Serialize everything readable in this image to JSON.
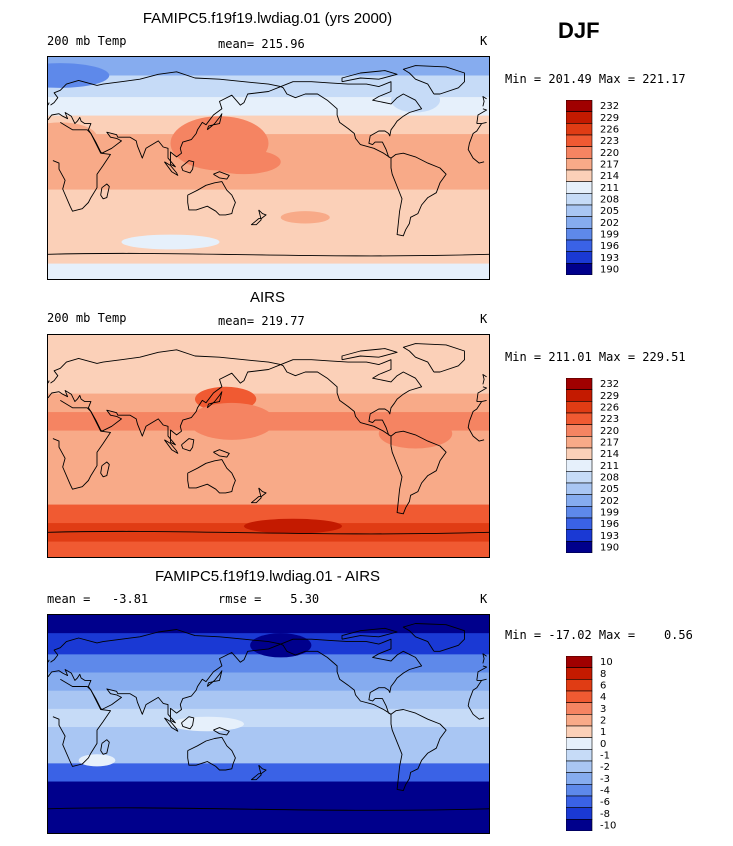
{
  "season": "DJF",
  "coast_color": "#000000",
  "panels": [
    {
      "id": "model",
      "title": "FAMIPC5.f19f19.lwdiag.01 (yrs 2000)",
      "left_label": "200 mb Temp",
      "mid_label": "mean= 215.96",
      "units": "K",
      "minmax": "Min = 201.49 Max = 221.17"
    },
    {
      "id": "obs",
      "title": "AIRS",
      "left_label": "200 mb Temp",
      "mid_label": "mean= 219.77",
      "units": "K",
      "minmax": "Min = 211.01 Max = 229.51"
    },
    {
      "id": "diff",
      "title": "FAMIPC5.f19f19.lwdiag.01 - AIRS",
      "left_label": "mean =   -3.81",
      "mid_label": "rmse =    5.30",
      "units": "K",
      "minmax": "Min = -17.02 Max =    0.56"
    }
  ],
  "chart_data": [
    {
      "type": "heatmap",
      "title": "FAMIPC5.f19f19.lwdiag.01 (yrs 2000)",
      "variable": "200 mb Temp",
      "units": "K",
      "mean": 215.96,
      "min": 201.49,
      "max": 221.17,
      "levels": [
        "232",
        "229",
        "226",
        "223",
        "220",
        "217",
        "214",
        "211",
        "208",
        "205",
        "202",
        "199",
        "196",
        "193",
        "190"
      ],
      "colors": [
        "#a00000",
        "#c41a00",
        "#e03c14",
        "#f05a32",
        "#f58462",
        "#f8aa88",
        "#fbd0b8",
        "#e6f0fb",
        "#c6dbf7",
        "#a9c6f3",
        "#86acef",
        "#5e89ea",
        "#3a62e6",
        "#1a39d4",
        "#00008c"
      ],
      "zonal_bands": [
        {
          "lat": 85,
          "value": 204.5
        },
        {
          "lat": 65,
          "value": 208.5
        },
        {
          "lat": 50,
          "value": 213
        },
        {
          "lat": 35,
          "value": 216
        },
        {
          "lat": 20,
          "value": 218.5
        },
        {
          "lat": 5,
          "value": 219.5
        },
        {
          "lat": -10,
          "value": 219
        },
        {
          "lat": -25,
          "value": 216.5
        },
        {
          "lat": -40,
          "value": 214
        },
        {
          "lat": -55,
          "value": 215.5
        },
        {
          "lat": -70,
          "value": 215
        },
        {
          "lat": -85,
          "value": 212
        }
      ],
      "features": [
        {
          "lon": 140,
          "lat": 20,
          "lon_r": 40,
          "lat_r": 22,
          "value": 220.5
        },
        {
          "lon": 160,
          "lat": 5,
          "lon_r": 30,
          "lat_r": 10,
          "value": 221
        },
        {
          "lon": 10,
          "lat": 25,
          "lon_r": 30,
          "lat_r": 12,
          "value": 217
        },
        {
          "lon": 330,
          "lat": 15,
          "lon_r": 25,
          "lat_r": 12,
          "value": 219
        },
        {
          "lon": 10,
          "lat": 75,
          "lon_r": 40,
          "lat_r": 10,
          "value": 201.5
        },
        {
          "lon": 210,
          "lat": -40,
          "lon_r": 20,
          "lat_r": 5,
          "value": 217
        },
        {
          "lon": 300,
          "lat": 55,
          "lon_r": 20,
          "lat_r": 10,
          "value": 209
        },
        {
          "lon": 100,
          "lat": -60,
          "lon_r": 40,
          "lat_r": 6,
          "value": 213
        }
      ]
    },
    {
      "type": "heatmap",
      "title": "AIRS",
      "variable": "200 mb Temp",
      "units": "K",
      "mean": 219.77,
      "min": 211.01,
      "max": 229.51,
      "levels": [
        "232",
        "229",
        "226",
        "223",
        "220",
        "217",
        "214",
        "211",
        "208",
        "205",
        "202",
        "199",
        "196",
        "193",
        "190"
      ],
      "colors": [
        "#a00000",
        "#c41a00",
        "#e03c14",
        "#f05a32",
        "#f58462",
        "#f8aa88",
        "#fbd0b8",
        "#e6f0fb",
        "#c6dbf7",
        "#a9c6f3",
        "#86acef",
        "#5e89ea",
        "#3a62e6",
        "#1a39d4",
        "#00008c"
      ],
      "zonal_bands": [
        {
          "lat": 85,
          "value": 215
        },
        {
          "lat": 65,
          "value": 214.5
        },
        {
          "lat": 50,
          "value": 216
        },
        {
          "lat": 35,
          "value": 219
        },
        {
          "lat": 20,
          "value": 220
        },
        {
          "lat": 5,
          "value": 219
        },
        {
          "lat": -10,
          "value": 219
        },
        {
          "lat": -25,
          "value": 218
        },
        {
          "lat": -40,
          "value": 219
        },
        {
          "lat": -55,
          "value": 225
        },
        {
          "lat": -70,
          "value": 227
        },
        {
          "lat": -85,
          "value": 224
        }
      ],
      "features": [
        {
          "lon": 145,
          "lat": 38,
          "lon_r": 25,
          "lat_r": 10,
          "value": 223.5
        },
        {
          "lon": 150,
          "lat": 20,
          "lon_r": 35,
          "lat_r": 15,
          "value": 220.5
        },
        {
          "lon": 300,
          "lat": 10,
          "lon_r": 30,
          "lat_r": 12,
          "value": 221
        },
        {
          "lon": 200,
          "lat": -65,
          "lon_r": 40,
          "lat_r": 6,
          "value": 229
        }
      ]
    },
    {
      "type": "heatmap",
      "title": "FAMIPC5.f19f19.lwdiag.01 - AIRS",
      "variable": "difference",
      "units": "K",
      "mean": -3.81,
      "rmse": 5.3,
      "min": -17.02,
      "max": 0.56,
      "levels": [
        "10",
        "8",
        "6",
        "4",
        "3",
        "2",
        "1",
        "0",
        "-1",
        "-2",
        "-3",
        "-4",
        "-6",
        "-8",
        "-10"
      ],
      "colors": [
        "#a00000",
        "#c41a00",
        "#e03c14",
        "#f05a32",
        "#f58462",
        "#f8aa88",
        "#fbd0b8",
        "#e6f0fb",
        "#c6dbf7",
        "#a9c6f3",
        "#86acef",
        "#5e89ea",
        "#3a62e6",
        "#1a39d4",
        "#00008c"
      ],
      "zonal_bands": [
        {
          "lat": 85,
          "value": -10.5
        },
        {
          "lat": 65,
          "value": -6.5
        },
        {
          "lat": 50,
          "value": -3.5
        },
        {
          "lat": 35,
          "value": -2.5
        },
        {
          "lat": 20,
          "value": -1.5
        },
        {
          "lat": 5,
          "value": -0.5
        },
        {
          "lat": -10,
          "value": -1.5
        },
        {
          "lat": -25,
          "value": -2
        },
        {
          "lat": -40,
          "value": -4.5
        },
        {
          "lat": -55,
          "value": -9
        },
        {
          "lat": -70,
          "value": -11
        },
        {
          "lat": -85,
          "value": -12
        }
      ],
      "features": [
        {
          "lon": 130,
          "lat": 0,
          "lon_r": 30,
          "lat_r": 6,
          "value": 0.3
        },
        {
          "lon": 40,
          "lat": -30,
          "lon_r": 15,
          "lat_r": 5,
          "value": 0.3
        },
        {
          "lon": 190,
          "lat": 65,
          "lon_r": 25,
          "lat_r": 10,
          "value": -10.5
        }
      ]
    }
  ]
}
